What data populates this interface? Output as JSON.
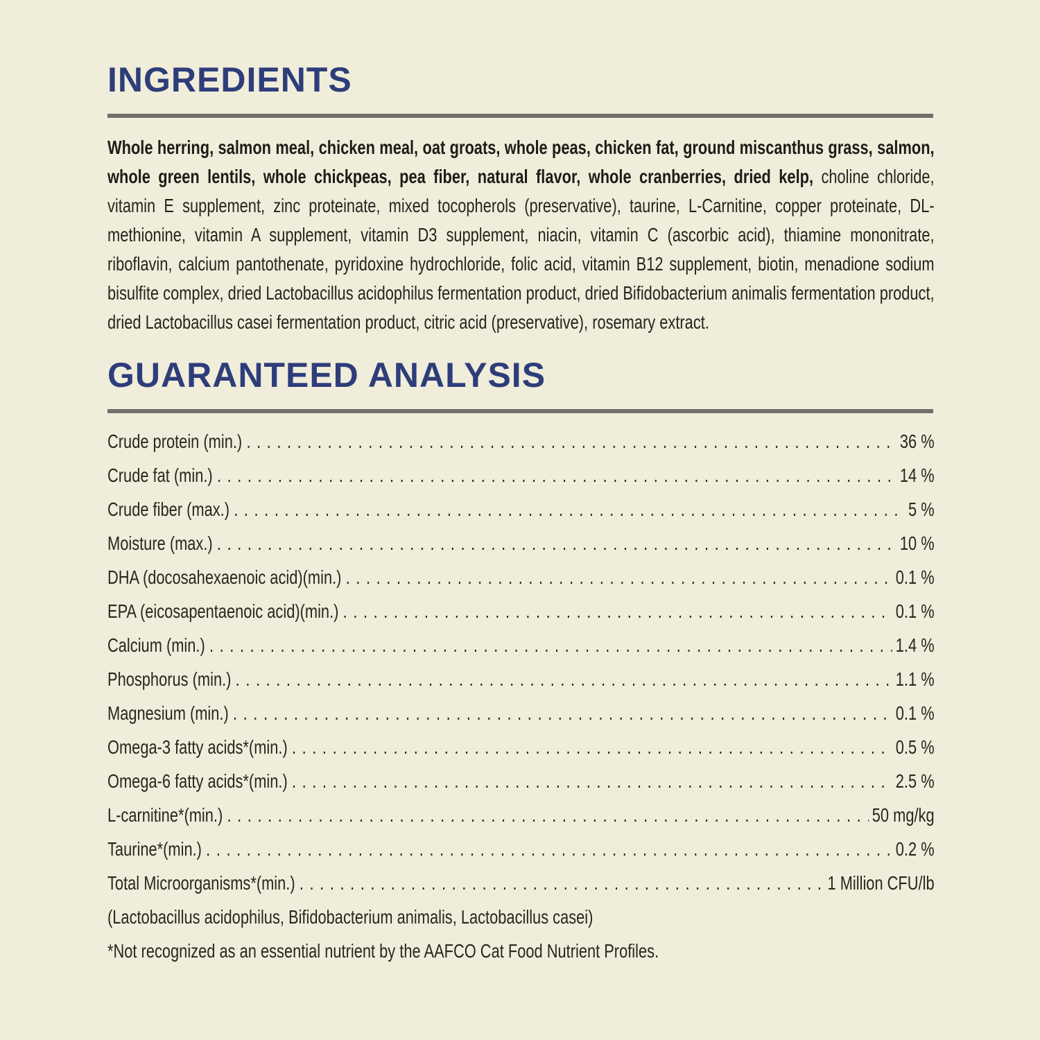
{
  "colors": {
    "background": "#f0edda",
    "heading": "#2e3d7a",
    "body_text": "#25251f",
    "divider": "#71716b"
  },
  "ingredients": {
    "title": "INGREDIENTS",
    "primary": "Whole herring, salmon meal, chicken meal, oat groats, whole peas, chicken fat, ground miscanthus grass, salmon, whole green lentils, whole chickpeas, pea fiber, natural flavor, whole cranberries, dried kelp,",
    "secondary": "choline chloride, vitamin E supplement, zinc proteinate, mixed tocopherols (preservative), taurine, L-Carnitine, copper proteinate, DL-methionine, vitamin A supplement, vitamin D3 supplement, niacin, vitamin C (ascorbic acid), thiamine mononitrate, riboflavin, calcium pantothenate, pyridoxine hydrochloride, folic acid, vitamin B12 supplement, biotin, menadione sodium bisulfite complex, dried Lactobacillus acidophilus fermentation product, dried Bifidobacterium animalis fermentation product, dried Lactobacillus casei fermentation product, citric acid (preservative), rosemary extract."
  },
  "guaranteed_analysis": {
    "title": "GUARANTEED ANALYSIS",
    "rows": [
      {
        "label": "Crude protein (min.)",
        "value": "36 %"
      },
      {
        "label": "Crude fat (min.)",
        "value": "14 %"
      },
      {
        "label": "Crude fiber (max.)",
        "value": "5 %"
      },
      {
        "label": "Moisture (max.)",
        "value": "10 %"
      },
      {
        "label": "DHA (docosahexaenoic acid)(min.)",
        "value": "0.1 %"
      },
      {
        "label": "EPA (eicosapentaenoic acid)(min.)",
        "value": "0.1 %"
      },
      {
        "label": "Calcium (min.)",
        "value": "1.4 %"
      },
      {
        "label": "Phosphorus (min.)",
        "value": "1.1 %"
      },
      {
        "label": "Magnesium (min.)",
        "value": "0.1 %"
      },
      {
        "label": "Omega-3 fatty acids*(min.)",
        "value": "0.5 %"
      },
      {
        "label": "Omega-6 fatty acids*(min.)",
        "value": "2.5 %"
      },
      {
        "label": "L-carnitine*(min.)",
        "value": "50 mg/kg"
      },
      {
        "label": "Taurine*(min.)",
        "value": "0.2 %"
      },
      {
        "label": "Total Microorganisms*(min.)",
        "value": "1 Million CFU/lb"
      }
    ],
    "microorganisms_note": "(Lactobacillus acidophilus, Bifidobacterium animalis, Lactobacillus casei)",
    "aafco_note": "*Not recognized as an essential nutrient by the AAFCO Cat Food Nutrient Profiles."
  }
}
